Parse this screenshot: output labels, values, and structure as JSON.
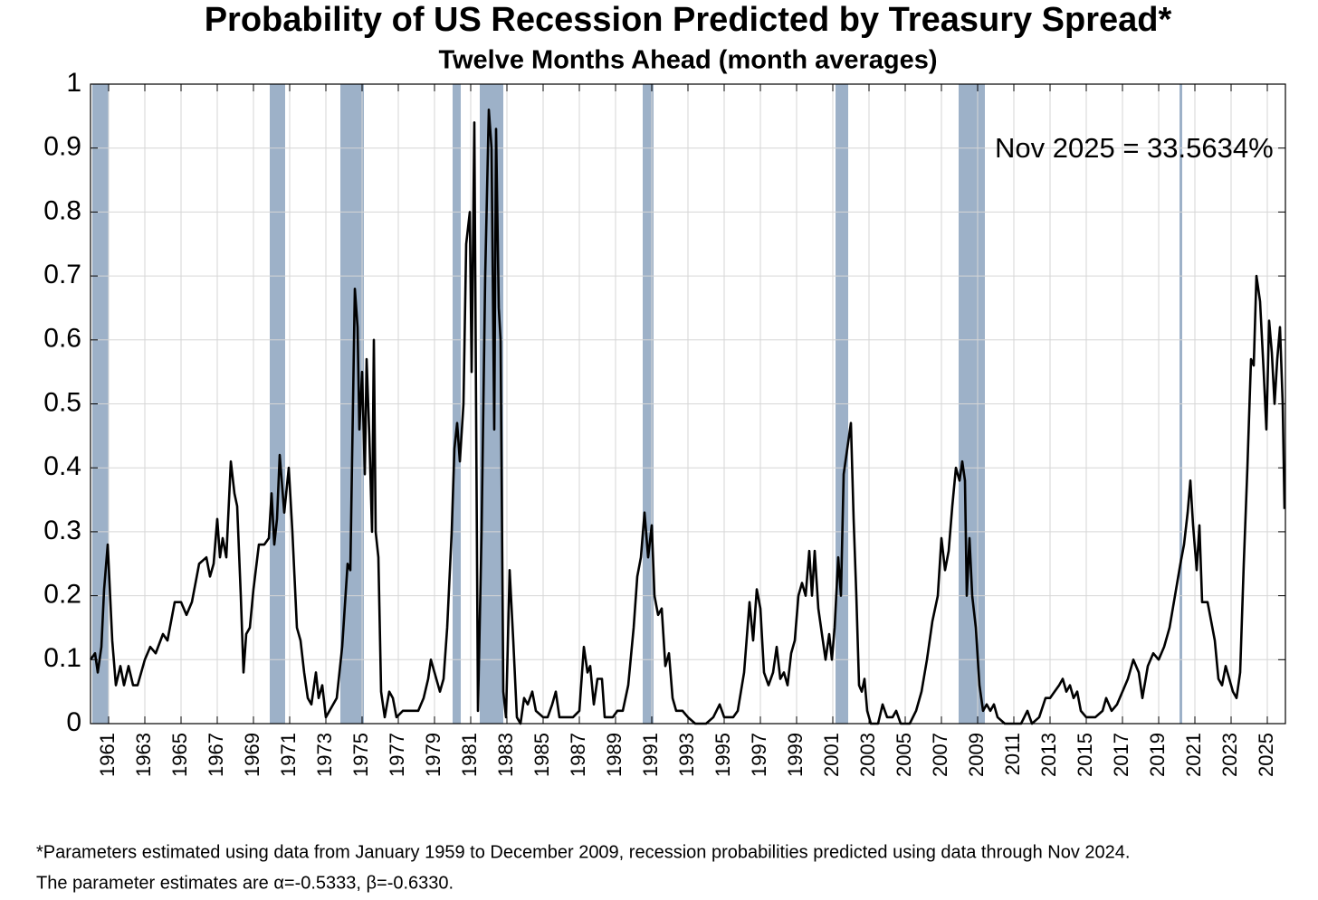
{
  "chart_data": {
    "type": "line",
    "title": "Probability of US Recession Predicted by Treasury Spread*",
    "subtitle": "Twelve Months Ahead (month averages)",
    "annotation": "Nov 2025 = 33.5634%",
    "footnotes": [
      "*Parameters estimated using data from January 1959 to December 2009, recession probabilities predicted using data through Nov 2024.",
      "The parameter estimates are α=-0.5333, β=-0.6330."
    ],
    "color": "#000000",
    "shade_color": "#9db1c8",
    "grid": true,
    "xlim": [
      1960,
      2026
    ],
    "ylim": [
      0,
      1
    ],
    "yticks": [
      0,
      0.1,
      0.2,
      0.3,
      0.4,
      0.5,
      0.6,
      0.7,
      0.8,
      0.9,
      1
    ],
    "xticks": [
      1961,
      1963,
      1965,
      1967,
      1969,
      1971,
      1973,
      1975,
      1977,
      1979,
      1981,
      1983,
      1985,
      1987,
      1989,
      1991,
      1993,
      1995,
      1997,
      1999,
      2001,
      2003,
      2005,
      2007,
      2009,
      2011,
      2013,
      2015,
      2017,
      2019,
      2021,
      2023,
      2025
    ],
    "recessions": [
      [
        1960.1,
        1961.0
      ],
      [
        1969.9,
        1970.75
      ],
      [
        1973.8,
        1975.1
      ],
      [
        1980.0,
        1980.45
      ],
      [
        1981.5,
        1982.8
      ],
      [
        1990.5,
        1991.1
      ],
      [
        2001.15,
        2001.85
      ],
      [
        2007.95,
        2009.4
      ],
      [
        2020.15,
        2020.3
      ]
    ],
    "x": [
      1960.0,
      1960.25,
      1960.4,
      1960.6,
      1960.75,
      1960.95,
      1961.2,
      1961.4,
      1961.65,
      1961.85,
      1962.1,
      1962.35,
      1962.6,
      1963.0,
      1963.3,
      1963.6,
      1964.0,
      1964.25,
      1964.65,
      1965.0,
      1965.3,
      1965.6,
      1966.0,
      1966.4,
      1966.6,
      1966.8,
      1967.0,
      1967.15,
      1967.3,
      1967.5,
      1967.75,
      1967.95,
      1968.1,
      1968.3,
      1968.45,
      1968.6,
      1968.8,
      1969.0,
      1969.3,
      1969.6,
      1969.85,
      1970.0,
      1970.15,
      1970.3,
      1970.45,
      1970.7,
      1970.95,
      1971.15,
      1971.4,
      1971.6,
      1971.8,
      1972.0,
      1972.2,
      1972.45,
      1972.6,
      1972.8,
      1973.0,
      1973.2,
      1973.6,
      1973.9,
      1974.2,
      1974.35,
      1974.6,
      1974.75,
      1974.85,
      1975.0,
      1975.15,
      1975.25,
      1975.4,
      1975.55,
      1975.65,
      1975.75,
      1975.9,
      1976.05,
      1976.25,
      1976.5,
      1976.7,
      1976.9,
      1977.25,
      1977.75,
      1978.1,
      1978.4,
      1978.65,
      1978.8,
      1979.0,
      1979.3,
      1979.5,
      1979.7,
      1979.85,
      1979.95,
      1980.1,
      1980.25,
      1980.4,
      1980.6,
      1980.75,
      1980.95,
      1981.05,
      1981.2,
      1981.4,
      1981.6,
      1981.8,
      1982.0,
      1982.15,
      1982.3,
      1982.4,
      1982.55,
      1982.65,
      1982.8,
      1982.95,
      1983.15,
      1983.35,
      1983.55,
      1983.75,
      1983.95,
      1984.15,
      1984.4,
      1984.6,
      1985.0,
      1985.25,
      1985.5,
      1985.7,
      1985.9,
      1986.25,
      1986.65,
      1987.0,
      1987.25,
      1987.45,
      1987.6,
      1987.8,
      1988.0,
      1988.25,
      1988.4,
      1988.85,
      1989.1,
      1989.4,
      1989.7,
      1990.0,
      1990.2,
      1990.4,
      1990.6,
      1990.8,
      1991.0,
      1991.15,
      1991.35,
      1991.55,
      1991.75,
      1991.95,
      1992.15,
      1992.35,
      1992.7,
      1993.0,
      1993.4,
      1994.0,
      1994.4,
      1994.75,
      1995.0,
      1995.5,
      1995.75,
      1996.1,
      1996.4,
      1996.6,
      1996.8,
      1997.0,
      1997.2,
      1997.45,
      1997.7,
      1997.9,
      1998.1,
      1998.3,
      1998.5,
      1998.7,
      1998.9,
      1999.1,
      1999.3,
      1999.5,
      1999.7,
      1999.85,
      2000.0,
      2000.2,
      2000.4,
      2000.6,
      2000.8,
      2000.95,
      2001.1,
      2001.3,
      2001.45,
      2001.6,
      2001.8,
      2002.0,
      2002.15,
      2002.3,
      2002.45,
      2002.6,
      2002.75,
      2002.9,
      2003.1,
      2003.5,
      2003.75,
      2004.0,
      2004.3,
      2004.5,
      2004.75,
      2005.25,
      2005.6,
      2005.9,
      2006.2,
      2006.5,
      2006.8,
      2007.0,
      2007.2,
      2007.4,
      2007.6,
      2007.8,
      2008.0,
      2008.15,
      2008.3,
      2008.4,
      2008.55,
      2008.7,
      2008.9,
      2009.1,
      2009.3,
      2009.5,
      2009.7,
      2009.9,
      2010.1,
      2010.5,
      2011.0,
      2011.4,
      2011.75,
      2012.0,
      2012.4,
      2012.75,
      2013.0,
      2013.25,
      2013.5,
      2013.7,
      2013.9,
      2014.1,
      2014.3,
      2014.5,
      2014.7,
      2015.0,
      2015.5,
      2015.9,
      2016.1,
      2016.4,
      2016.7,
      2017.0,
      2017.3,
      2017.6,
      2017.9,
      2018.1,
      2018.4,
      2018.7,
      2019.0,
      2019.3,
      2019.6,
      2019.9,
      2020.2,
      2020.4,
      2020.6,
      2020.75,
      2020.9,
      2021.1,
      2021.25,
      2021.4,
      2021.7,
      2021.9,
      2022.1,
      2022.3,
      2022.5,
      2022.7,
      2022.9,
      2023.1,
      2023.3,
      2023.5,
      2023.7,
      2023.9,
      2024.1,
      2024.25,
      2024.4,
      2024.6,
      2024.8,
      2024.95,
      2025.1,
      2025.25,
      2025.4,
      2025.55,
      2025.7,
      2025.85,
      2025.95
    ],
    "values": [
      0.1,
      0.11,
      0.08,
      0.12,
      0.21,
      0.28,
      0.13,
      0.06,
      0.09,
      0.06,
      0.09,
      0.06,
      0.06,
      0.1,
      0.12,
      0.11,
      0.14,
      0.13,
      0.19,
      0.19,
      0.17,
      0.19,
      0.25,
      0.26,
      0.23,
      0.25,
      0.32,
      0.26,
      0.29,
      0.26,
      0.41,
      0.36,
      0.34,
      0.2,
      0.08,
      0.14,
      0.15,
      0.21,
      0.28,
      0.28,
      0.29,
      0.36,
      0.28,
      0.32,
      0.42,
      0.33,
      0.4,
      0.3,
      0.15,
      0.13,
      0.08,
      0.04,
      0.03,
      0.08,
      0.04,
      0.06,
      0.01,
      0.02,
      0.04,
      0.12,
      0.25,
      0.24,
      0.68,
      0.62,
      0.46,
      0.55,
      0.39,
      0.57,
      0.45,
      0.3,
      0.6,
      0.3,
      0.26,
      0.05,
      0.01,
      0.05,
      0.04,
      0.01,
      0.02,
      0.02,
      0.02,
      0.04,
      0.07,
      0.1,
      0.08,
      0.05,
      0.07,
      0.15,
      0.24,
      0.3,
      0.43,
      0.47,
      0.41,
      0.5,
      0.75,
      0.8,
      0.55,
      0.94,
      0.02,
      0.3,
      0.7,
      0.96,
      0.9,
      0.46,
      0.93,
      0.65,
      0.6,
      0.05,
      0.01,
      0.24,
      0.13,
      0.01,
      0.0,
      0.04,
      0.03,
      0.05,
      0.02,
      0.01,
      0.01,
      0.03,
      0.05,
      0.01,
      0.01,
      0.01,
      0.02,
      0.12,
      0.08,
      0.09,
      0.03,
      0.07,
      0.07,
      0.01,
      0.01,
      0.02,
      0.02,
      0.06,
      0.15,
      0.23,
      0.26,
      0.33,
      0.26,
      0.31,
      0.2,
      0.17,
      0.18,
      0.09,
      0.11,
      0.04,
      0.02,
      0.02,
      0.01,
      0.0,
      0.0,
      0.01,
      0.03,
      0.01,
      0.01,
      0.02,
      0.08,
      0.19,
      0.13,
      0.21,
      0.18,
      0.08,
      0.06,
      0.08,
      0.12,
      0.07,
      0.08,
      0.06,
      0.11,
      0.13,
      0.2,
      0.22,
      0.2,
      0.27,
      0.2,
      0.27,
      0.18,
      0.14,
      0.1,
      0.14,
      0.1,
      0.15,
      0.26,
      0.2,
      0.39,
      0.43,
      0.47,
      0.32,
      0.2,
      0.06,
      0.05,
      0.07,
      0.02,
      0.0,
      0.0,
      0.03,
      0.01,
      0.01,
      0.02,
      0.0,
      0.0,
      0.02,
      0.05,
      0.1,
      0.16,
      0.2,
      0.29,
      0.24,
      0.27,
      0.34,
      0.4,
      0.38,
      0.41,
      0.38,
      0.2,
      0.29,
      0.2,
      0.15,
      0.06,
      0.02,
      0.03,
      0.02,
      0.03,
      0.01,
      0.0,
      0.0,
      0.0,
      0.02,
      0.0,
      0.01,
      0.04,
      0.04,
      0.05,
      0.06,
      0.07,
      0.05,
      0.06,
      0.04,
      0.05,
      0.02,
      0.01,
      0.01,
      0.02,
      0.04,
      0.02,
      0.03,
      0.05,
      0.07,
      0.1,
      0.08,
      0.04,
      0.09,
      0.11,
      0.1,
      0.12,
      0.15,
      0.2,
      0.25,
      0.28,
      0.33,
      0.38,
      0.31,
      0.24,
      0.31,
      0.19,
      0.19,
      0.16,
      0.13,
      0.07,
      0.06,
      0.09,
      0.07,
      0.05,
      0.04,
      0.08,
      0.25,
      0.4,
      0.57,
      0.56,
      0.7,
      0.66,
      0.55,
      0.46,
      0.63,
      0.58,
      0.5,
      0.57,
      0.62,
      0.5,
      0.335634
    ]
  }
}
